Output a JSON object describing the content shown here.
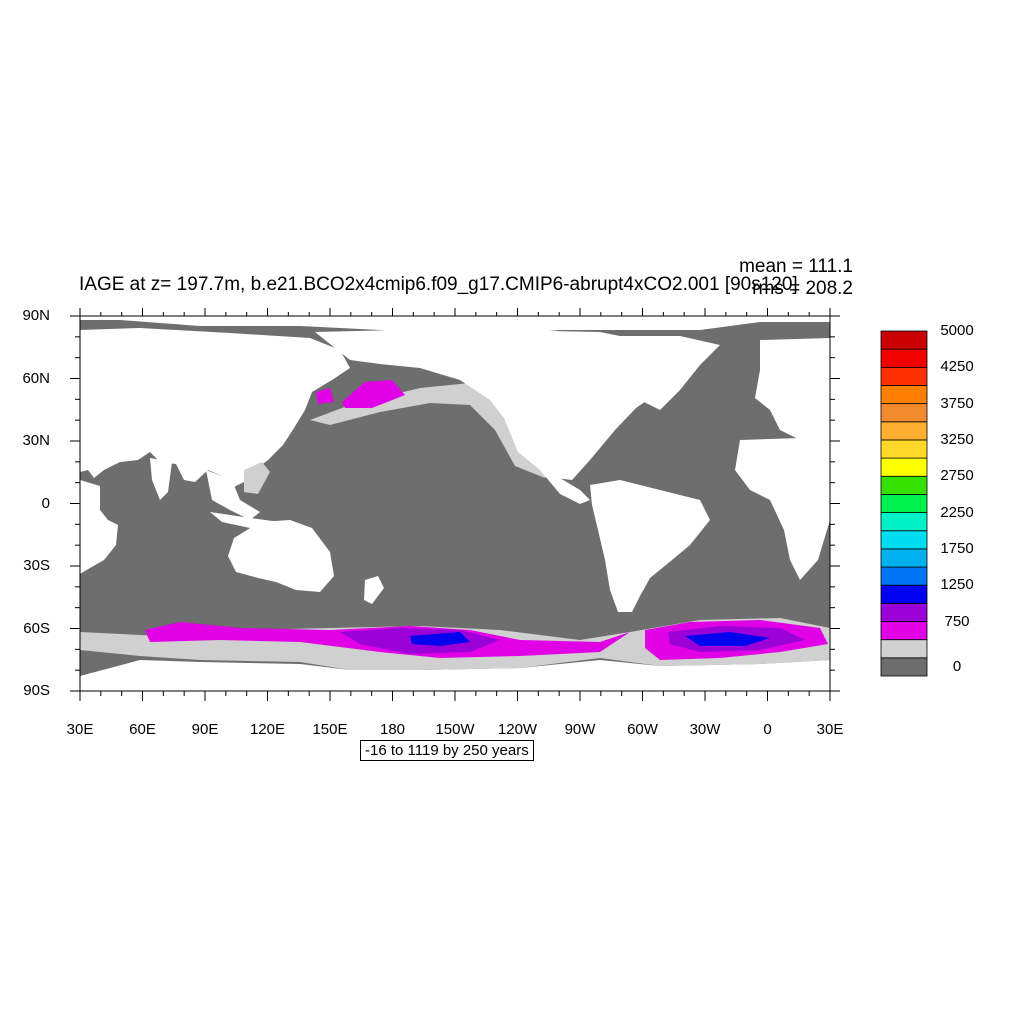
{
  "title": "IAGE at z= 197.7m, b.e21.BCO2x4cmip6.f09_g17.CMIP6-abrupt4xCO2.001 [90s120]",
  "stats": {
    "mean": "mean = 111.1",
    "rms": "rms = 208.2"
  },
  "lat_labels": [
    "90N",
    "60N",
    "30N",
    "0",
    "30S",
    "60S",
    "90S"
  ],
  "lon_labels": [
    "30E",
    "60E",
    "90E",
    "120E",
    "150E",
    "180",
    "150W",
    "120W",
    "90W",
    "60W",
    "30W",
    "0",
    "30E"
  ],
  "footer": "-16 to 1119 by 250 years",
  "colorbar": {
    "colors": [
      "#6e6e6e",
      "#d0d0d0",
      "#e100e6",
      "#9b00d8",
      "#0000f0",
      "#0074f2",
      "#00b0ef",
      "#00dcf0",
      "#00f0c8",
      "#00f050",
      "#35e000",
      "#ffff00",
      "#ffd82a",
      "#ffb030",
      "#f28a2e",
      "#ff8000",
      "#ff3000",
      "#f00000",
      "#c80000"
    ],
    "labels": [
      "0",
      "750",
      "1250",
      "1750",
      "2250",
      "2750",
      "3250",
      "3750",
      "4250",
      "5000"
    ]
  },
  "map": {
    "land_color": "#ffffff",
    "ocean_base_color": "#6e6e6e",
    "lon_min": 30,
    "lon_max": 390,
    "lat_min": -90,
    "lat_max": 90
  }
}
